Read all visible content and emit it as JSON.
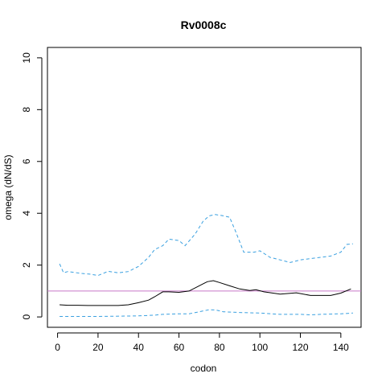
{
  "chart_data": {
    "type": "line",
    "title": "Rv0008c",
    "xlabel": "codon",
    "ylabel": "omega (dN/dS)",
    "xlim": [
      -5,
      150
    ],
    "ylim": [
      -0.4,
      10.4
    ],
    "xticks": [
      0,
      20,
      40,
      60,
      80,
      100,
      120,
      140
    ],
    "yticks": [
      0,
      2,
      4,
      6,
      8,
      10
    ],
    "grid": false,
    "reference_line": {
      "y": 1,
      "color": "#c678c6"
    },
    "series": [
      {
        "style": "solid",
        "color": "#000000",
        "x": [
          1,
          5,
          10,
          15,
          20,
          25,
          30,
          35,
          40,
          45,
          48,
          52,
          55,
          60,
          65,
          70,
          74,
          77,
          80,
          85,
          90,
          95,
          98,
          102,
          110,
          118,
          125,
          130,
          135,
          140,
          145
        ],
        "y": [
          0.47,
          0.45,
          0.45,
          0.44,
          0.44,
          0.44,
          0.44,
          0.47,
          0.55,
          0.65,
          0.78,
          0.97,
          0.97,
          0.95,
          1.0,
          1.2,
          1.36,
          1.4,
          1.33,
          1.2,
          1.08,
          1.02,
          1.05,
          0.97,
          0.88,
          0.93,
          0.83,
          0.83,
          0.83,
          0.92,
          1.08
        ]
      },
      {
        "style": "dashed",
        "color": "#3aa0e0",
        "x": [
          1,
          3,
          5,
          8,
          12,
          16,
          20,
          25,
          30,
          35,
          40,
          45,
          48,
          52,
          55,
          60,
          63,
          68,
          72,
          75,
          78,
          82,
          85,
          88,
          92,
          97,
          100,
          105,
          110,
          115,
          120,
          125,
          130,
          135,
          140,
          143,
          146
        ],
        "y": [
          2.05,
          1.7,
          1.75,
          1.72,
          1.68,
          1.65,
          1.6,
          1.76,
          1.7,
          1.75,
          1.95,
          2.3,
          2.6,
          2.75,
          3.0,
          2.95,
          2.75,
          3.2,
          3.7,
          3.9,
          3.95,
          3.9,
          3.85,
          3.3,
          2.5,
          2.5,
          2.55,
          2.3,
          2.2,
          2.1,
          2.2,
          2.25,
          2.3,
          2.35,
          2.5,
          2.8,
          2.82
        ]
      },
      {
        "style": "dashed",
        "color": "#3aa0e0",
        "x": [
          1,
          20,
          40,
          48,
          52,
          60,
          65,
          70,
          75,
          78,
          82,
          90,
          100,
          110,
          120,
          125,
          130,
          140,
          146
        ],
        "y": [
          0.02,
          0.02,
          0.04,
          0.07,
          0.1,
          0.12,
          0.12,
          0.2,
          0.28,
          0.27,
          0.2,
          0.17,
          0.15,
          0.1,
          0.1,
          0.08,
          0.1,
          0.12,
          0.15
        ]
      }
    ]
  }
}
